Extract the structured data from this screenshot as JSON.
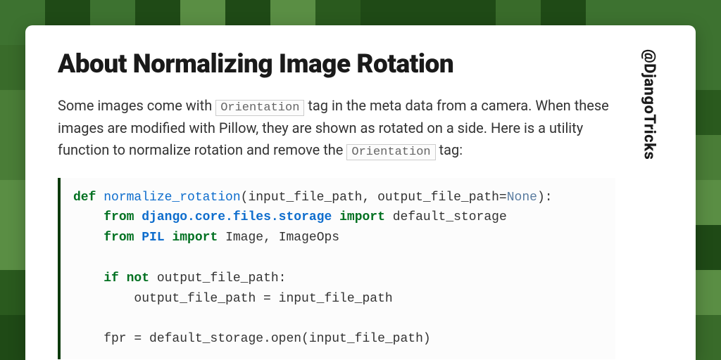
{
  "background": {
    "cols": 16,
    "rows": 8,
    "palette": [
      "#2a5a1e",
      "#396b2a",
      "#4a7d37",
      "#5a8e44",
      "#1f4a16",
      "#3d7230"
    ]
  },
  "card": {
    "background_color": "#ffffff",
    "border_radius": 10
  },
  "heading": {
    "text": "About Normalizing Image Rotation",
    "font_size": 37,
    "font_weight": 900,
    "color": "#1a1a1a"
  },
  "paragraph": {
    "font_size": 20,
    "color": "#333333",
    "segments": [
      {
        "t": "Some images come with "
      },
      {
        "t": "Orientation",
        "code": true
      },
      {
        "t": " tag in the meta data from a camera. When these images are modified with Pillow, they are shown as rotated on a side. Here is a utility function to normalize rotation and remove the "
      },
      {
        "t": "Orientation",
        "code": true
      },
      {
        "t": " tag:"
      }
    ]
  },
  "inline_code_style": {
    "border_color": "#cccccc",
    "color": "#666666",
    "background": "#fcfcfc"
  },
  "codeblock": {
    "font_size": 18,
    "background": "#fcfcfc",
    "border_left_color": "#0d3b0d",
    "border_left_width": 4,
    "token_colors": {
      "kw": "#007020",
      "fn": "#0e6dcd",
      "mod": "#0e6dcd",
      "const": "#5a7ca0"
    },
    "lines": [
      [
        {
          "t": "def ",
          "c": "kw"
        },
        {
          "t": "normalize_rotation",
          "c": "fn"
        },
        {
          "t": "(input_file_path, output_file_path="
        },
        {
          "t": "None",
          "c": "const"
        },
        {
          "t": "):"
        }
      ],
      [
        {
          "t": "    "
        },
        {
          "t": "from ",
          "c": "kw"
        },
        {
          "t": "django.core.files.storage",
          "c": "mod"
        },
        {
          "t": " "
        },
        {
          "t": "import ",
          "c": "kw"
        },
        {
          "t": "default_storage"
        }
      ],
      [
        {
          "t": "    "
        },
        {
          "t": "from ",
          "c": "kw"
        },
        {
          "t": "PIL",
          "c": "mod"
        },
        {
          "t": " "
        },
        {
          "t": "import ",
          "c": "kw"
        },
        {
          "t": "Image, ImageOps"
        }
      ],
      [
        {
          "t": ""
        }
      ],
      [
        {
          "t": "    "
        },
        {
          "t": "if not ",
          "c": "kw"
        },
        {
          "t": "output_file_path:"
        }
      ],
      [
        {
          "t": "        output_file_path = input_file_path"
        }
      ],
      [
        {
          "t": ""
        }
      ],
      [
        {
          "t": "    fpr = default_storage.open(input_file_path)"
        }
      ]
    ]
  },
  "sidebar": {
    "handle": "@DjangoTricks",
    "font_size": 22,
    "font_weight": 800,
    "color": "#1a1a1a"
  }
}
